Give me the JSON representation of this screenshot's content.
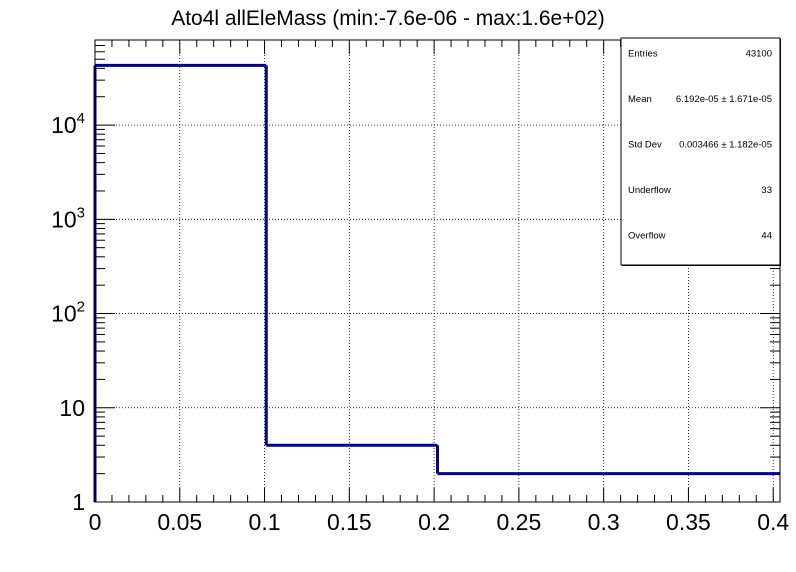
{
  "chart_data": {
    "type": "bar",
    "title": "Ato4l allEleMass (min:-7.6e-06 - max:1.6e+02)",
    "xlabel": "",
    "ylabel": "",
    "x_scale": "linear",
    "y_scale": "log",
    "xlim": [
      0,
      0.404
    ],
    "ylim": [
      1,
      80000
    ],
    "grid": true,
    "bins": [
      {
        "x_low": 0.0,
        "x_high": 0.101,
        "value": 43000
      },
      {
        "x_low": 0.101,
        "x_high": 0.202,
        "value": 4
      },
      {
        "x_low": 0.202,
        "x_high": 0.404,
        "value": 2
      }
    ],
    "x_ticks": [
      {
        "value": 0,
        "label": "0"
      },
      {
        "value": 0.05,
        "label": "0.05"
      },
      {
        "value": 0.1,
        "label": "0.1"
      },
      {
        "value": 0.15,
        "label": "0.15"
      },
      {
        "value": 0.2,
        "label": "0.2"
      },
      {
        "value": 0.25,
        "label": "0.25"
      },
      {
        "value": 0.3,
        "label": "0.3"
      },
      {
        "value": 0.35,
        "label": "0.35"
      },
      {
        "value": 0.4,
        "label": "0.4"
      }
    ],
    "y_ticks": [
      {
        "value": 1,
        "base": "1",
        "exp": ""
      },
      {
        "value": 10,
        "base": "10",
        "exp": ""
      },
      {
        "value": 100,
        "base": "10",
        "exp": "2"
      },
      {
        "value": 1000,
        "base": "10",
        "exp": "3"
      },
      {
        "value": 10000,
        "base": "10",
        "exp": "4"
      }
    ],
    "line_color": "#000080",
    "stats": [
      {
        "label": "Entries",
        "value": "43100"
      },
      {
        "label": "Mean",
        "value": "6.192e-05 ± 1.671e-05"
      },
      {
        "label": "Std Dev",
        "value": "0.003466 ± 1.182e-05"
      },
      {
        "label": "Underflow",
        "value": "33"
      },
      {
        "label": "Overflow",
        "value": "44"
      }
    ],
    "legend_position": "top-right"
  }
}
